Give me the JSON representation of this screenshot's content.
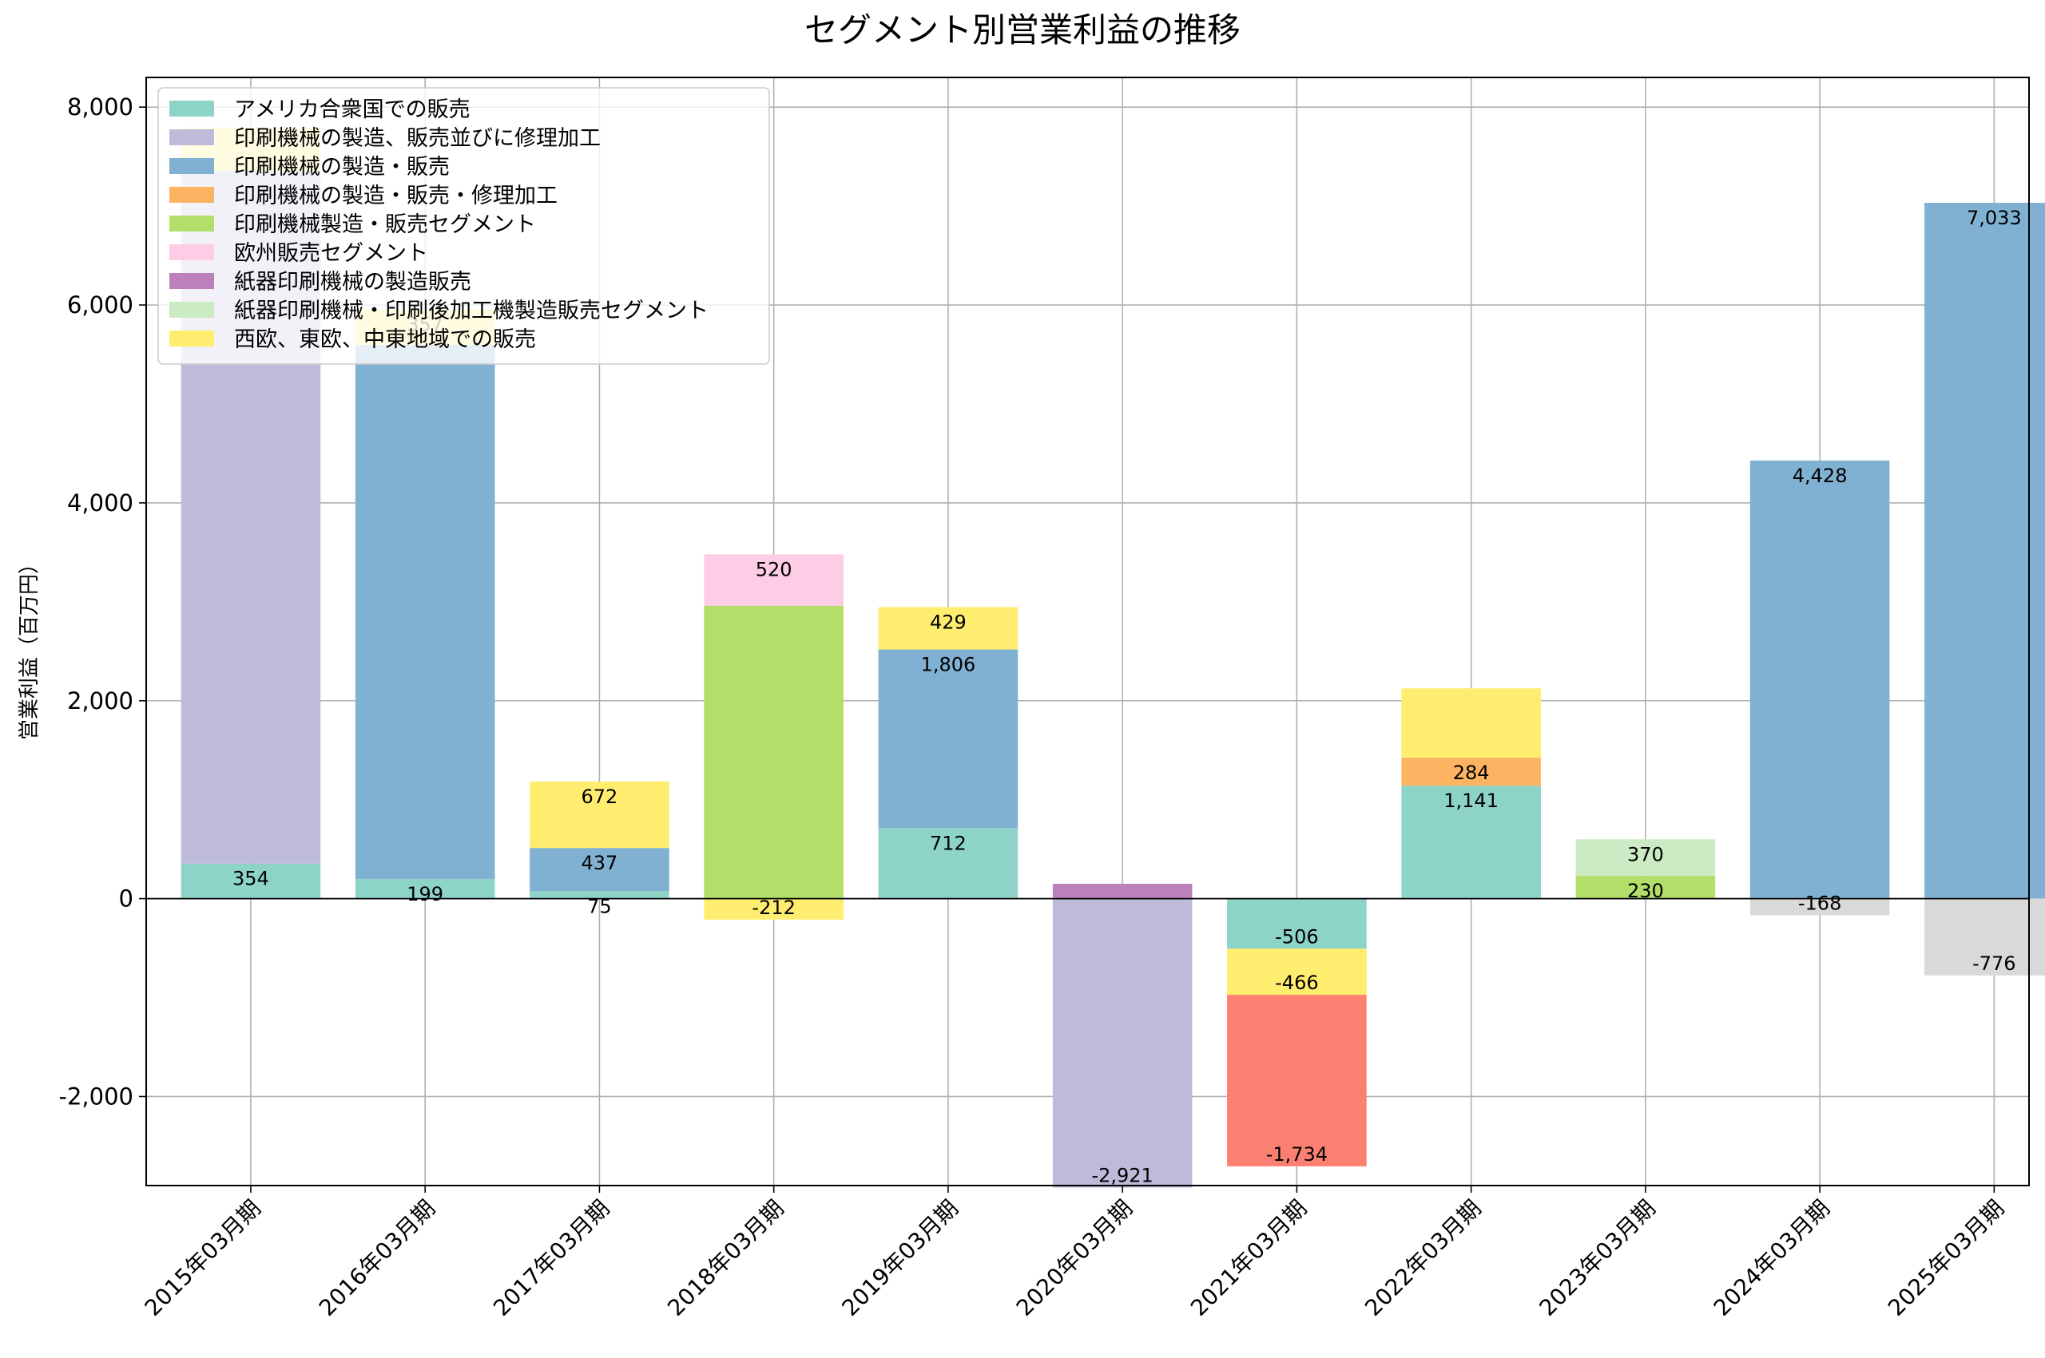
{
  "chart_data": {
    "type": "bar",
    "stacked": true,
    "title": "セグメント別営業利益の推移",
    "ylabel": "営業利益（百万円）",
    "xlabel": "",
    "ylim": [
      -2900,
      8300
    ],
    "yticks": [
      -2000,
      0,
      2000,
      4000,
      6000,
      8000
    ],
    "ytick_labels": [
      "-2,000",
      "0",
      "2,000",
      "4,000",
      "6,000",
      "8,000"
    ],
    "grid": true,
    "legend_position": "top-left",
    "categories": [
      "2015年03月期",
      "2016年03月期",
      "2017年03月期",
      "2018年03月期",
      "2019年03月期",
      "2020年03月期",
      "2021年03月期",
      "2022年03月期",
      "2023年03月期",
      "2024年03月期",
      "2025年03月期"
    ],
    "series": [
      {
        "name": "アメリカ合衆国での販売",
        "color": "#8dd3c7",
        "values": [
          354,
          199,
          75,
          null,
          712,
          null,
          -506,
          1141,
          null,
          null,
          null
        ]
      },
      {
        "name": "印刷機械の製造、販売並びに修理加工",
        "color": "#bebada",
        "values": [
          7000,
          null,
          null,
          null,
          null,
          -2921,
          null,
          null,
          null,
          null,
          null
        ]
      },
      {
        "name": "印刷機械の製造・販売",
        "color": "#80b1d3",
        "values": [
          null,
          5400,
          437,
          null,
          1806,
          null,
          null,
          null,
          null,
          4428,
          7033
        ]
      },
      {
        "name": "印刷機械の製造・販売・修理加工",
        "color": "#fdb462",
        "values": [
          null,
          null,
          null,
          null,
          null,
          null,
          null,
          284,
          null,
          null,
          null
        ]
      },
      {
        "name": "印刷機械製造・販売セグメント",
        "color": "#b3de69",
        "values": [
          null,
          null,
          null,
          2960,
          null,
          null,
          null,
          null,
          230,
          null,
          null
        ]
      },
      {
        "name": "欧州販売セグメント",
        "color": "#fccde5",
        "values": [
          null,
          null,
          null,
          520,
          null,
          null,
          null,
          null,
          null,
          null,
          null
        ]
      },
      {
        "name": "紙器印刷機械の製造販売",
        "color": "#bc80bd",
        "values": [
          null,
          null,
          null,
          null,
          null,
          150,
          null,
          null,
          null,
          null,
          null
        ]
      },
      {
        "name": "紙器印刷機械・印刷後加工機製造販売セグメント",
        "color": "#ccebc5",
        "values": [
          null,
          null,
          null,
          null,
          null,
          null,
          null,
          null,
          370,
          null,
          null
        ]
      },
      {
        "name": "西欧、東欧、中東地域での販売",
        "color": "#ffed6f",
        "values": [
          440,
          357,
          672,
          -212,
          429,
          null,
          -466,
          700,
          null,
          null,
          null
        ]
      },
      {
        "name": "",
        "color": "#fb8072",
        "values": [
          null,
          null,
          null,
          null,
          null,
          null,
          -1734,
          null,
          null,
          null,
          null
        ]
      },
      {
        "name": "",
        "color": "#d9d9d9",
        "values": [
          null,
          null,
          null,
          null,
          null,
          null,
          null,
          null,
          null,
          -168,
          -776
        ]
      }
    ],
    "bar_labels": [
      {
        "category_index": 0,
        "series_index": 0,
        "text": "354"
      },
      {
        "category_index": 1,
        "series_index": 0,
        "text": "199"
      },
      {
        "category_index": 1,
        "series_index": 8,
        "text": "357"
      },
      {
        "category_index": 2,
        "series_index": 0,
        "text": "75"
      },
      {
        "category_index": 2,
        "series_index": 2,
        "text": "437"
      },
      {
        "category_index": 2,
        "series_index": 8,
        "text": "672"
      },
      {
        "category_index": 3,
        "series_index": 8,
        "text": "-212"
      },
      {
        "category_index": 3,
        "series_index": 5,
        "text": "520"
      },
      {
        "category_index": 4,
        "series_index": 0,
        "text": "712"
      },
      {
        "category_index": 4,
        "series_index": 2,
        "text": "1,806"
      },
      {
        "category_index": 4,
        "series_index": 8,
        "text": "429"
      },
      {
        "category_index": 5,
        "series_index": 1,
        "text": "-2,921"
      },
      {
        "category_index": 6,
        "series_index": 0,
        "text": "-506"
      },
      {
        "category_index": 6,
        "series_index": 9,
        "text": "-1,734"
      },
      {
        "category_index": 6,
        "series_index": 8,
        "text": "-466"
      },
      {
        "category_index": 7,
        "series_index": 0,
        "text": "1,141"
      },
      {
        "category_index": 7,
        "series_index": 3,
        "text": "284"
      },
      {
        "category_index": 8,
        "series_index": 4,
        "text": "230"
      },
      {
        "category_index": 8,
        "series_index": 7,
        "text": "370"
      },
      {
        "category_index": 9,
        "series_index": 2,
        "text": "4,428"
      },
      {
        "category_index": 9,
        "series_index": 10,
        "text": "-168"
      },
      {
        "category_index": 10,
        "series_index": 2,
        "text": "7,033"
      },
      {
        "category_index": 10,
        "series_index": 10,
        "text": "-776"
      }
    ]
  }
}
